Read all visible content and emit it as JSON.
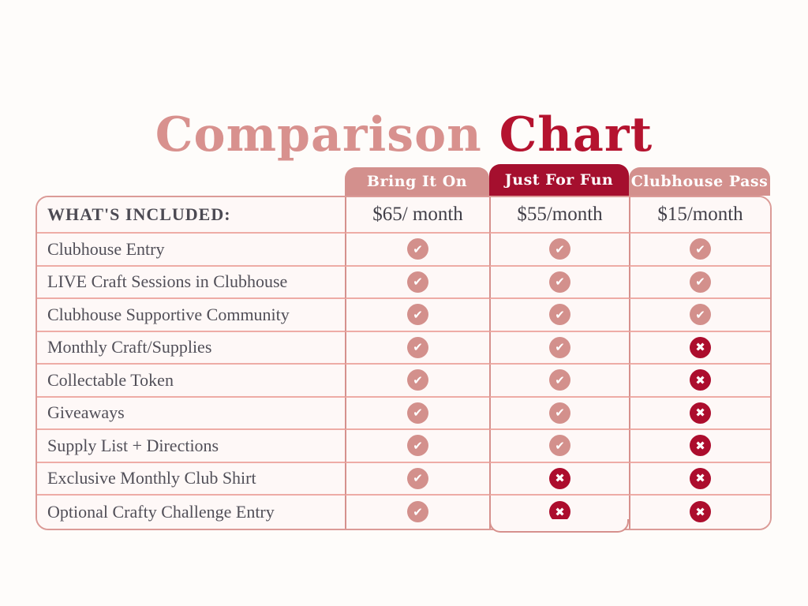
{
  "title": {
    "leading": "Comparison",
    "trailing": "Chart"
  },
  "icons": {
    "check": "check-circle-icon",
    "cross": "x-circle-icon"
  },
  "colors": {
    "title_pink": "#d8918e",
    "title_red": "#b5132f",
    "tab_pink": "#d3908d",
    "tab_red": "#a50f2e",
    "table_border": "#db9b97",
    "row_divider": "#eeaca6",
    "check_circle": "#d3908c",
    "cross_circle": "#ac0d2d",
    "text_gray": "#514f58",
    "cell_background": "#fef8f7"
  },
  "chart_data": {
    "type": "table",
    "title": "Comparison Chart",
    "row_header": "WHAT'S INCLUDED:",
    "plans": [
      {
        "name": "Bring It On",
        "price": "$65/ month",
        "emphasis": false
      },
      {
        "name": "Just For Fun",
        "price": "$55/month",
        "emphasis": true
      },
      {
        "name": "Clubhouse Pass",
        "price": "$15/month",
        "emphasis": false
      }
    ],
    "features": [
      {
        "label": "Clubhouse Entry",
        "marks": [
          "check",
          "check",
          "check"
        ]
      },
      {
        "label": "LIVE Craft Sessions in Clubhouse",
        "marks": [
          "check",
          "check",
          "check"
        ]
      },
      {
        "label": "Clubhouse Supportive Community",
        "marks": [
          "check",
          "check",
          "check"
        ]
      },
      {
        "label": "Monthly Craft/Supplies",
        "marks": [
          "check",
          "check",
          "cross"
        ]
      },
      {
        "label": "Collectable Token",
        "marks": [
          "check",
          "check",
          "cross"
        ]
      },
      {
        "label": "Giveaways",
        "marks": [
          "check",
          "check",
          "cross"
        ]
      },
      {
        "label": "Supply List + Directions",
        "marks": [
          "check",
          "check",
          "cross"
        ]
      },
      {
        "label": "Exclusive Monthly Club Shirt",
        "marks": [
          "check",
          "cross",
          "cross"
        ]
      },
      {
        "label": "Optional Crafty Challenge Entry",
        "marks": [
          "check",
          "cross",
          "cross"
        ]
      }
    ]
  }
}
